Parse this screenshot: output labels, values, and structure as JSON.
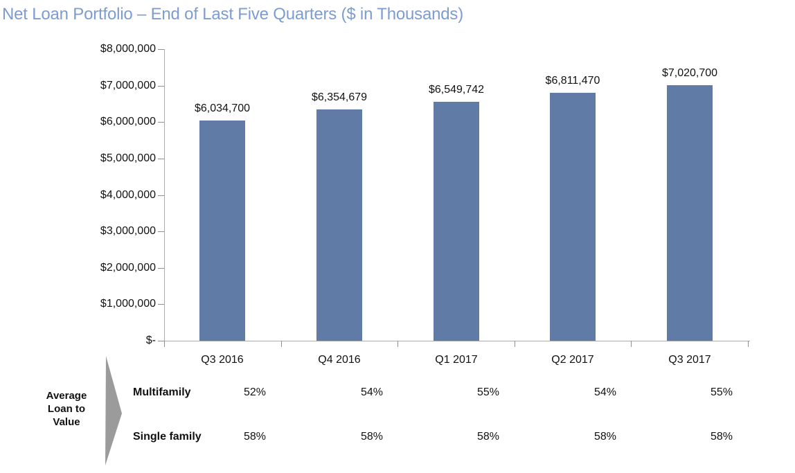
{
  "title": {
    "text": "Net Loan Portfolio – End of Last Five Quarters ($ in Thousands)",
    "color": "#7D9CD1"
  },
  "chart_data": {
    "type": "bar",
    "title": "Net Loan Portfolio – End of Last Five Quarters ($ in Thousands)",
    "categories": [
      "Q3 2016",
      "Q4 2016",
      "Q1 2017",
      "Q2 2017",
      "Q3 2017"
    ],
    "values": [
      6034700,
      6354679,
      6549742,
      6811470,
      7020700
    ],
    "data_labels": [
      "$6,034,700",
      "$6,354,679",
      "$6,549,742",
      "$6,811,470",
      "$7,020,700"
    ],
    "xlabel": "",
    "ylabel": "",
    "ylim": [
      0,
      8000000
    ],
    "y_axis": {
      "min": 0,
      "max": 8000000,
      "ticks": [
        "$8,000,000",
        "$7,000,000",
        "$6,000,000",
        "$5,000,000",
        "$4,000,000",
        "$3,000,000",
        "$2,000,000",
        "$1,000,000",
        "$-"
      ]
    },
    "grid": false,
    "legend_position": "none",
    "bar_color": "#607CA6"
  },
  "ltv_table": {
    "arrow_label_lines": [
      "Average",
      "Loan to",
      "Value"
    ],
    "arrow_color": "#9B9B9B",
    "rows": [
      {
        "label": "Multifamily",
        "values": [
          "52%",
          "54%",
          "55%",
          "54%",
          "55%"
        ]
      },
      {
        "label": "Single family",
        "values": [
          "58%",
          "58%",
          "58%",
          "58%",
          "58%"
        ]
      }
    ]
  }
}
